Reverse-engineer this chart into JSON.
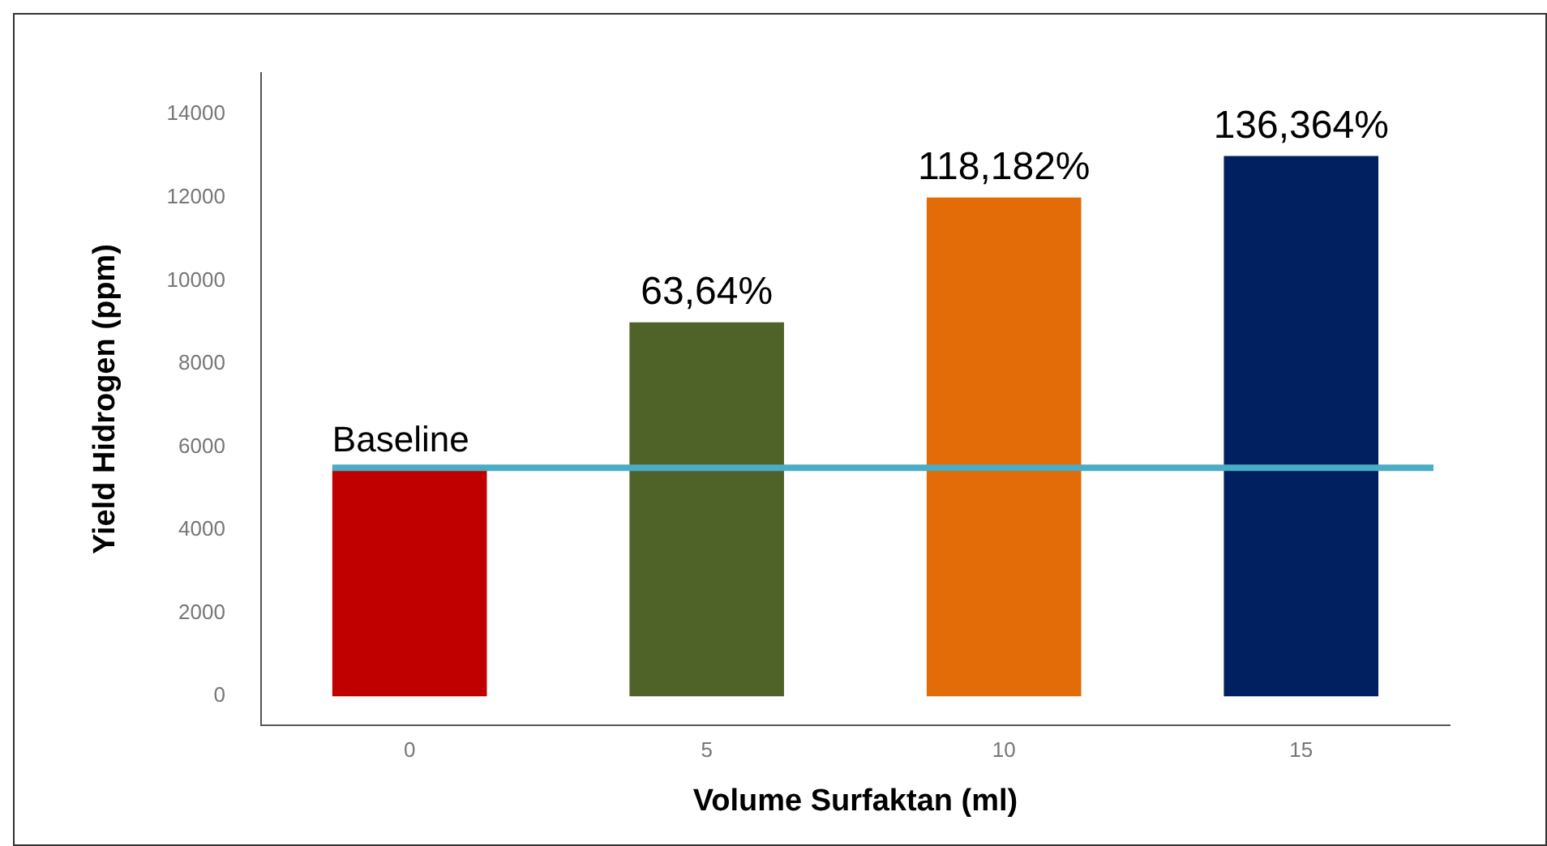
{
  "chart_data": {
    "type": "bar",
    "xlabel": "Volume Surfaktan (ml)",
    "ylabel": "Yield Hidrogen (ppm)",
    "categories": [
      "0",
      "5",
      "10",
      "15"
    ],
    "values": [
      5500,
      9000,
      12000,
      13000
    ],
    "colors": [
      "#c00000",
      "#4f6228",
      "#e36c09",
      "#002060"
    ],
    "annotations": [
      {
        "text": "63,64%",
        "x": "5",
        "y": 9000
      },
      {
        "text": "118,182%",
        "x": "10",
        "y": 12000
      },
      {
        "text": "136,364%",
        "x": "15",
        "y": 13000
      }
    ],
    "ylim": [
      -700,
      15000
    ],
    "yticks": [
      0,
      2000,
      4000,
      6000,
      8000,
      10000,
      12000,
      14000
    ],
    "grid": false,
    "legend": false,
    "ref_lines": [
      {
        "axis": "y",
        "value": 5500,
        "label": "Baseline",
        "color": "#4bacc6"
      }
    ]
  }
}
